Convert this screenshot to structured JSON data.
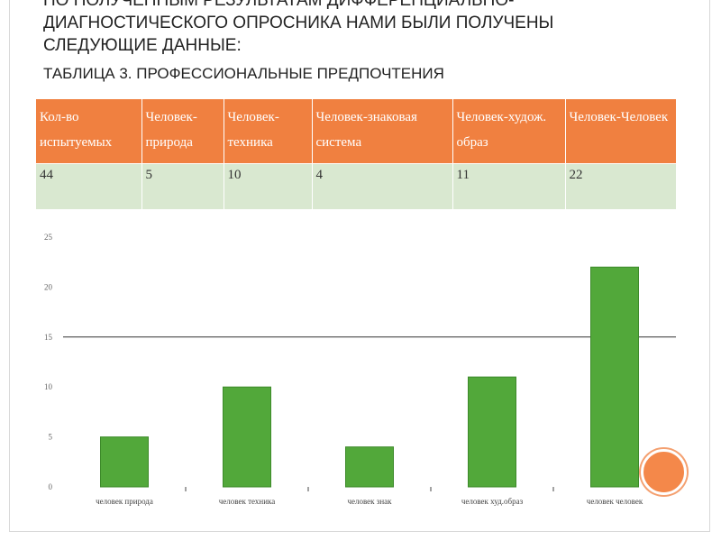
{
  "header": {
    "line1": "ПО ПОЛУЧЕННЫМ РЕЗУЛЬТАТАМ ДИФФЕРЕНЦИАЛЬНО-",
    "line2": "ДИАГНОСТИЧЕСКОГО ОПРОСНИКА НАМИ БЫЛИ ПОЛУЧЕНЫ",
    "line3": "СЛЕДУЮЩИЕ ДАННЫЕ:",
    "table_caption": "ТАБЛИЦА 3. ПРОФЕССИОНАЛЬНЫЕ ПРЕДПОЧТЕНИЯ"
  },
  "table": {
    "headers": [
      "Кол-во испытуемых",
      "Человек-природа",
      "Человек-техника",
      "Человек-знаковая система",
      "Человек-худож. образ",
      "Человек-Человек"
    ],
    "row": [
      "44",
      "5",
      "10",
      "4",
      "11",
      "22"
    ]
  },
  "colors": {
    "header_bg": "#f08040",
    "row_bg": "#d9e8d0",
    "bar": "#52a83a",
    "accent_circle": "#f4884a"
  },
  "chart_data": {
    "type": "bar",
    "categories": [
      "человек природа",
      "человек техника",
      "человек знак",
      "человек худ.образ",
      "человек человек"
    ],
    "values": [
      5,
      10,
      4,
      11,
      22
    ],
    "ylim": [
      0,
      25
    ],
    "yticks": [
      0,
      5,
      10,
      15,
      20,
      25
    ],
    "grid": "single line at 15",
    "title": "",
    "xlabel": "",
    "ylabel": ""
  }
}
